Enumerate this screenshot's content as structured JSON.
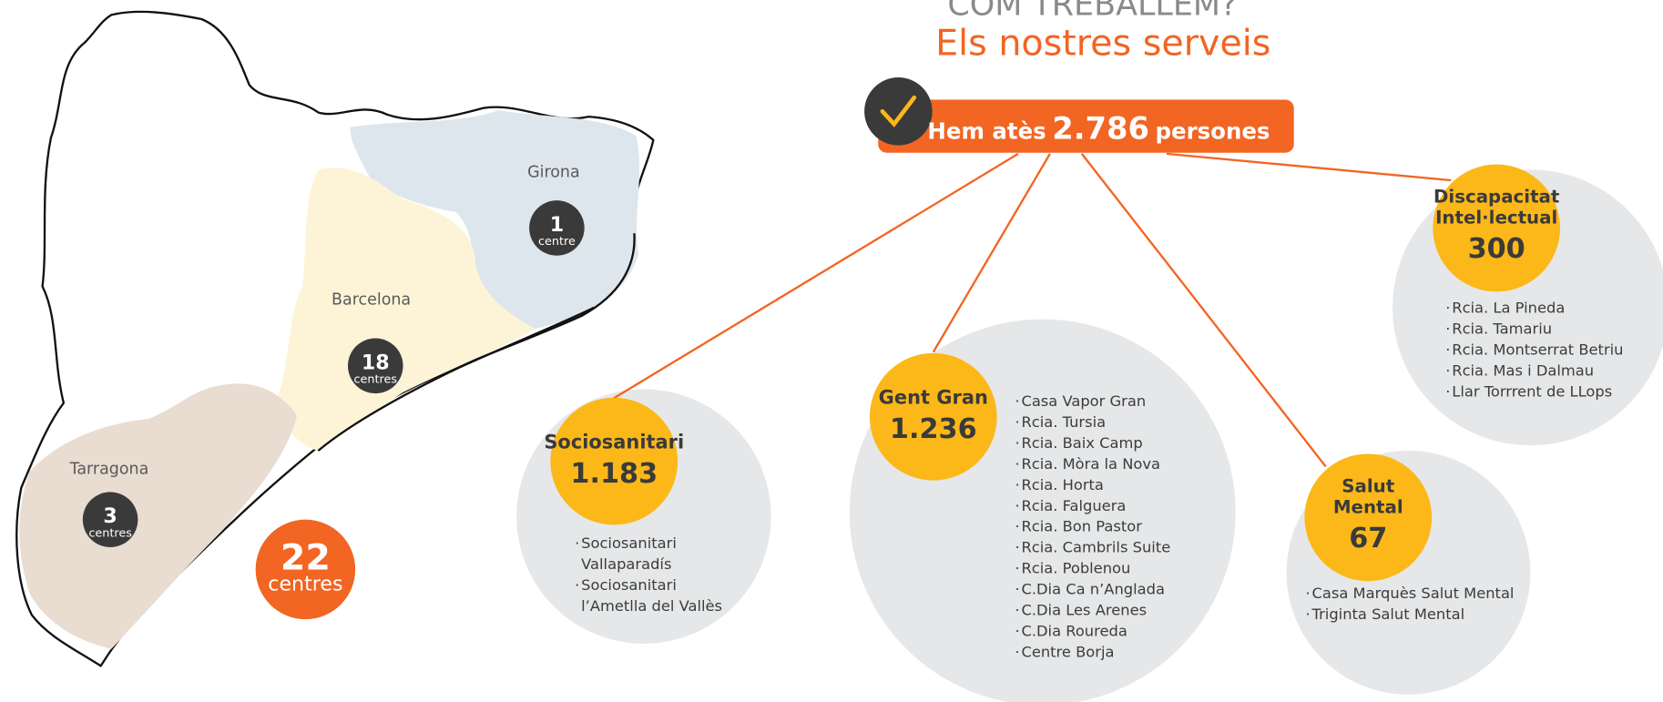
{
  "header": {
    "kicker": "COM TREBALLEM?",
    "title": "Els nostres serveis"
  },
  "total": {
    "prefix": "Hem atès",
    "number": "2.786",
    "suffix": "persones"
  },
  "map": {
    "regions": [
      {
        "name": "Girona",
        "count": "1",
        "unit": "centre"
      },
      {
        "name": "Barcelona",
        "count": "18",
        "unit": "centres"
      },
      {
        "name": "Tarragona",
        "count": "3",
        "unit": "centres"
      }
    ],
    "total": {
      "count": "22",
      "unit": "centres"
    }
  },
  "services": [
    {
      "name": [
        "Sociosanitari"
      ],
      "count": "1.183",
      "items": [
        [
          "Sociosanitari",
          "Vallaparadís"
        ],
        [
          "Sociosanitari",
          "l’Ametlla del Vallès"
        ]
      ]
    },
    {
      "name": [
        "Gent Gran"
      ],
      "count": "1.236",
      "items": [
        [
          "Casa Vapor Gran"
        ],
        [
          "Rcia. Tursia"
        ],
        [
          "Rcia. Baix Camp"
        ],
        [
          "Rcia. Mòra la Nova"
        ],
        [
          "Rcia. Horta"
        ],
        [
          "Rcia. Falguera"
        ],
        [
          "Rcia. Bon Pastor"
        ],
        [
          "Rcia. Cambrils Suite"
        ],
        [
          "Rcia. Poblenou"
        ],
        [
          "C.Dia Ca n’Anglada"
        ],
        [
          "C.Dia Les Arenes"
        ],
        [
          "C.Dia Roureda"
        ],
        [
          "Centre Borja"
        ]
      ]
    },
    {
      "name": [
        "Salut",
        "Mental"
      ],
      "count": "67",
      "items": [
        [
          "Casa Marquès Salut Mental"
        ],
        [
          "Triginta Salut Mental"
        ]
      ]
    },
    {
      "name": [
        "Discapacitat",
        "Intel·lectual"
      ],
      "count": "300",
      "items": [
        [
          "Rcia. La Pineda"
        ],
        [
          "Rcia. Tamariu"
        ],
        [
          "Rcia. Montserrat Betriu"
        ],
        [
          "Rcia. Mas i Dalmau"
        ],
        [
          "Llar Torrrent de LLops"
        ]
      ]
    }
  ]
}
